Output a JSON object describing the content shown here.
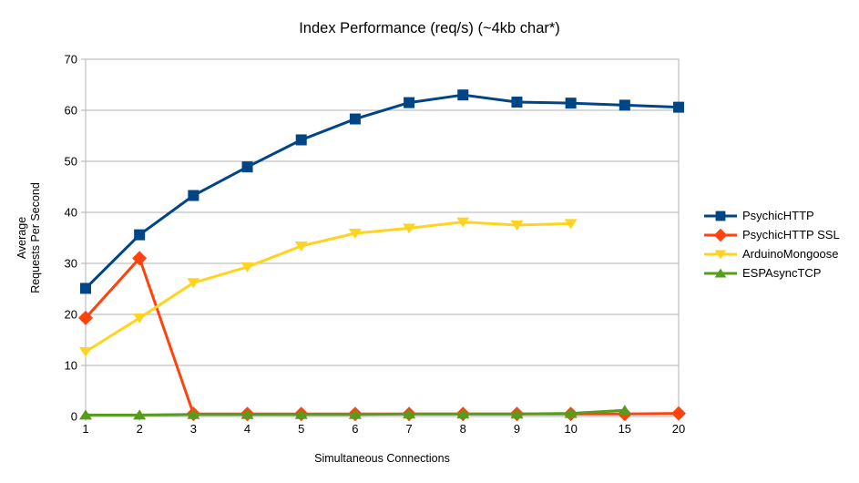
{
  "colors": {
    "background": "#ffffff",
    "grid": "#b3b3b3",
    "axis": "#b3b3b3",
    "text": "#000000"
  },
  "chart_data": {
    "type": "line",
    "title": "Index Performance (req/s) (~4kb char*)",
    "xlabel": "Simultaneous Connections",
    "ylabel": "Average Requests Per Second",
    "ylabel_lines": [
      "Average",
      "Requests Per Second"
    ],
    "categories": [
      "1",
      "2",
      "3",
      "4",
      "5",
      "6",
      "7",
      "8",
      "9",
      "10",
      "15",
      "20"
    ],
    "ylim": [
      0,
      70
    ],
    "yticks": [
      0,
      10,
      20,
      30,
      40,
      50,
      60,
      70
    ],
    "grid": "horizontal",
    "legend_position": "right",
    "series": [
      {
        "name": "PsychicHTTP",
        "color": "#004586",
        "marker": "square",
        "values": [
          25.1,
          35.6,
          43.3,
          48.9,
          54.2,
          58.3,
          61.5,
          63.0,
          61.6,
          61.4,
          61.0,
          60.6
        ]
      },
      {
        "name": "PsychicHTTP SSL",
        "color": "#ff420e",
        "marker": "diamond",
        "values": [
          19.3,
          31.0,
          0.5,
          0.5,
          0.5,
          0.5,
          0.5,
          0.5,
          0.5,
          0.5,
          0.5,
          0.6
        ]
      },
      {
        "name": "ArduinoMongoose",
        "color": "#ffd320",
        "marker": "triangle-down",
        "values": [
          12.7,
          19.3,
          26.2,
          29.3,
          33.4,
          35.9,
          36.9,
          38.1,
          37.5,
          37.8,
          null,
          null
        ]
      },
      {
        "name": "ESPAsyncTCP",
        "color": "#579d1c",
        "marker": "triangle-up",
        "values": [
          0.3,
          0.3,
          0.4,
          0.4,
          0.4,
          0.4,
          0.5,
          0.5,
          0.5,
          0.6,
          1.2,
          null
        ]
      }
    ]
  }
}
